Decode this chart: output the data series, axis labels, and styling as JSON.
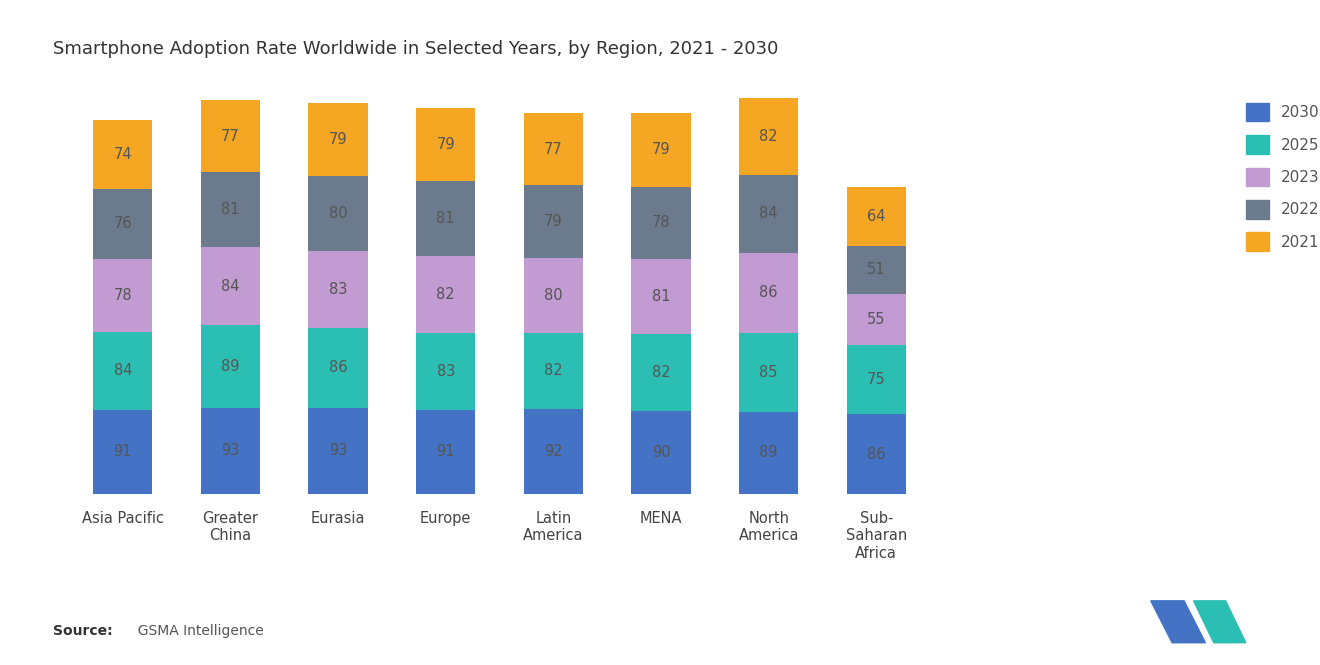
{
  "title": "Smartphone Adoption Rate Worldwide in Selected Years, by Region, 2021 - 2030",
  "regions": [
    "Asia Pacific",
    "Greater\nChina",
    "Eurasia",
    "Europe",
    "Latin\nAmerica",
    "MENA",
    "North\nAmerica",
    "Sub-\nSaharan\nAfrica"
  ],
  "years": [
    "2030",
    "2025",
    "2023",
    "2022",
    "2021"
  ],
  "values": {
    "Asia Pacific": [
      91,
      84,
      78,
      76,
      74
    ],
    "Greater\nChina": [
      93,
      89,
      84,
      81,
      77
    ],
    "Eurasia": [
      93,
      86,
      83,
      80,
      79
    ],
    "Europe": [
      91,
      83,
      82,
      81,
      79
    ],
    "Latin\nAmerica": [
      92,
      82,
      80,
      79,
      77
    ],
    "MENA": [
      90,
      82,
      81,
      78,
      79
    ],
    "North\nAmerica": [
      89,
      85,
      86,
      84,
      82
    ],
    "Sub-\nSaharan\nAfrica": [
      86,
      75,
      55,
      51,
      64
    ]
  },
  "colors": {
    "2030": "#4472C4",
    "2025": "#2BBFB3",
    "2023": "#C39BD3",
    "2022": "#6B7B8D",
    "2021": "#F5A623"
  },
  "label_color": "#555555",
  "background_color": "#FFFFFF",
  "bar_width": 0.55
}
